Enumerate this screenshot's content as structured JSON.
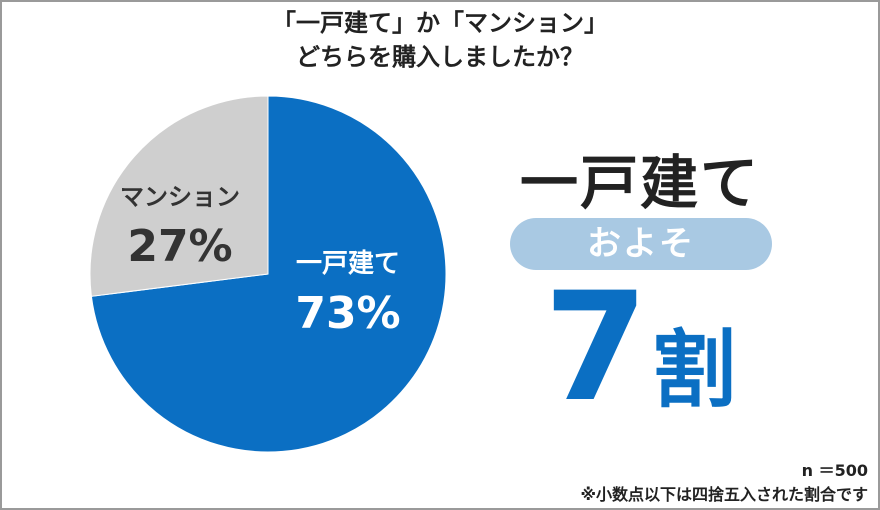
{
  "title_lines": [
    "「一戸建て」か「マンション」",
    "どちらを購入しましたか？"
  ],
  "highlight": {
    "type_label": "一戸建て",
    "approx_label": "およそ",
    "value": "7",
    "unit": "割"
  },
  "footer": {
    "sample": "n ＝500",
    "note": "※小数点以下は四捨五入された割合です"
  },
  "colors": {
    "detached": "#0b6fc3",
    "condo": "#cfcfcf",
    "pill": "#a9c9e3"
  },
  "chart_data": {
    "type": "pie",
    "title": "「一戸建て」か「マンション」 どちらを購入しましたか？",
    "slices": [
      {
        "label": "一戸建て",
        "value": 73,
        "value_label": "73%",
        "color": "#0b6fc3",
        "text_color": "#ffffff"
      },
      {
        "label": "マンション",
        "value": 27,
        "value_label": "27%",
        "color": "#cfcfcf",
        "text_color": "#333333"
      }
    ]
  }
}
